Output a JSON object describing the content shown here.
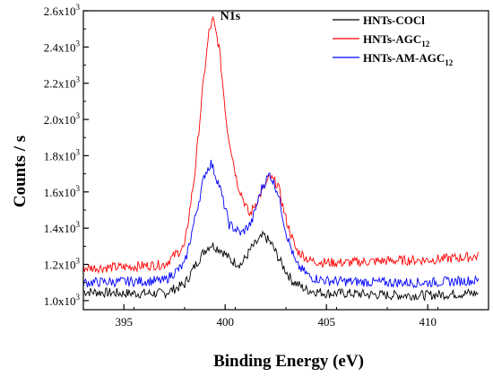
{
  "chart_data": {
    "type": "line",
    "xlabel": "Binding Energy (eV)",
    "ylabel": "Counts / s",
    "xlim": [
      393,
      413
    ],
    "ylim": [
      950,
      2600
    ],
    "x_ticks": [
      395,
      400,
      405,
      410
    ],
    "x_tick_labels": [
      "395",
      "400",
      "405",
      "410"
    ],
    "y_ticks": [
      1000,
      1200,
      1400,
      1600,
      1800,
      2000,
      2200,
      2400,
      2600
    ],
    "y_tick_labels": [
      {
        "mant": "1.0x10",
        "exp": "3"
      },
      {
        "mant": "1.2x10",
        "exp": "3"
      },
      {
        "mant": "1.4x10",
        "exp": "3"
      },
      {
        "mant": "1.6x10",
        "exp": "3"
      },
      {
        "mant": "1.8x10",
        "exp": "3"
      },
      {
        "mant": "2.0x10",
        "exp": "3"
      },
      {
        "mant": "2.2x10",
        "exp": "3"
      },
      {
        "mant": "2.4x10",
        "exp": "3"
      },
      {
        "mant": "2.6x10",
        "exp": "3"
      }
    ],
    "grid": false,
    "legend_position": "top-right",
    "annotations": [
      {
        "text": "N1s",
        "x": 399.4,
        "y": 2560
      }
    ],
    "series": [
      {
        "name": "HNTs-COCl",
        "legend_parts": [
          {
            "t": "HNTs-COCl",
            "sub": false
          }
        ],
        "color": "#000000",
        "x": [
          393,
          395,
          397,
          398,
          398.5,
          399,
          399.3,
          399.8,
          400.3,
          400.8,
          401.3,
          401.9,
          402.3,
          402.8,
          403.3,
          404,
          405,
          406,
          408,
          410,
          412,
          412.5
        ],
        "y": [
          1050,
          1040,
          1040,
          1090,
          1190,
          1280,
          1310,
          1280,
          1220,
          1200,
          1290,
          1360,
          1310,
          1200,
          1110,
          1060,
          1040,
          1040,
          1030,
          1030,
          1040,
          1040
        ]
      },
      {
        "name": "HNTs-AGC12",
        "legend_parts": [
          {
            "t": "HNTs-AGC",
            "sub": false
          },
          {
            "t": "12",
            "sub": true
          }
        ],
        "color": "#ff0000",
        "x": [
          393,
          395,
          397,
          398,
          398.5,
          398.9,
          399.2,
          399.4,
          399.7,
          400.1,
          400.6,
          401.2,
          401.8,
          402.2,
          402.6,
          403,
          403.5,
          404.2,
          405,
          406,
          408,
          410,
          412,
          412.5
        ],
        "y": [
          1180,
          1185,
          1200,
          1300,
          1700,
          2180,
          2480,
          2550,
          2400,
          1950,
          1650,
          1470,
          1600,
          1680,
          1640,
          1450,
          1280,
          1220,
          1210,
          1210,
          1220,
          1225,
          1240,
          1245
        ]
      },
      {
        "name": "HNTs-AM-AGC12",
        "legend_parts": [
          {
            "t": "HNTs-AM-AGC",
            "sub": false
          },
          {
            "t": "12",
            "sub": true
          }
        ],
        "color": "#0000ff",
        "x": [
          393,
          395,
          397,
          398,
          398.5,
          399,
          399.3,
          399.7,
          400.2,
          400.8,
          401.3,
          401.8,
          402.2,
          402.6,
          403,
          403.5,
          404.2,
          405,
          406,
          408,
          410,
          412,
          412.5
        ],
        "y": [
          1100,
          1105,
          1110,
          1200,
          1450,
          1700,
          1760,
          1640,
          1420,
          1370,
          1430,
          1620,
          1700,
          1600,
          1380,
          1200,
          1130,
          1110,
          1105,
          1100,
          1100,
          1110,
          1110
        ]
      }
    ]
  }
}
